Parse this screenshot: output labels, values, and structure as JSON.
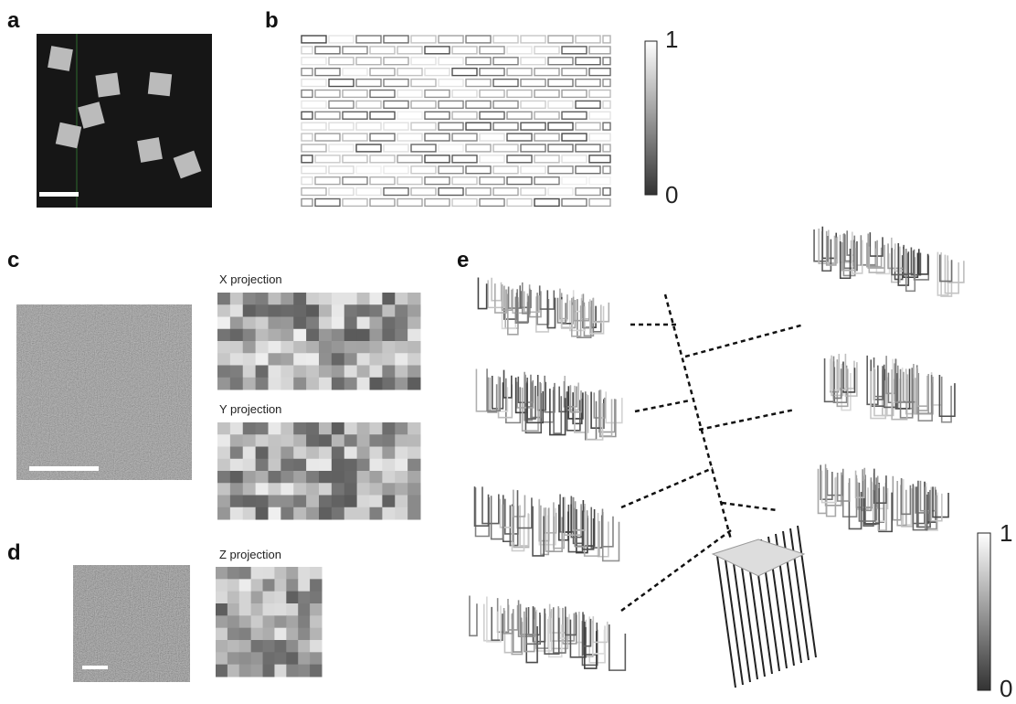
{
  "panels": {
    "a": {
      "label": "a"
    },
    "b": {
      "label": "b",
      "colorbar": {
        "max": "1",
        "min": "0"
      }
    },
    "c": {
      "label": "c",
      "x_projection": "X projection",
      "y_projection": "Y projection"
    },
    "d": {
      "label": "d",
      "z_projection": "Z projection"
    },
    "e": {
      "label": "e",
      "colorbar": {
        "max": "1",
        "min": "0"
      }
    }
  }
}
